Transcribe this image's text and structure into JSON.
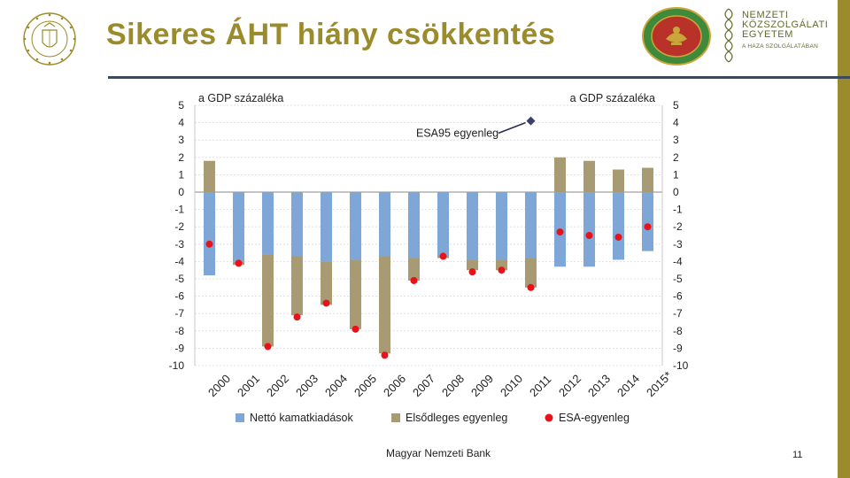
{
  "slide": {
    "title": "Sikeres ÁHT hiány csökkentés",
    "footer": "Magyar Nemzeti Bank",
    "page_number": "11",
    "university": {
      "line1": "NEMZETI",
      "line2": "KÖZSZOLGÁLATI",
      "line3": "EGYETEM",
      "tagline": "A HAZA SZOLGÁLATÁBAN"
    },
    "accent_color": "#9a8b2c",
    "icons": [
      "coat-of-arms-seal-icon",
      "university-seal-icon",
      "university-emblem-icon"
    ]
  },
  "chart_data": {
    "type": "bar",
    "stacked": true,
    "categories": [
      "2000",
      "2001",
      "2002",
      "2003",
      "2004",
      "2005",
      "2006",
      "2007",
      "2008",
      "2009",
      "2010",
      "2011",
      "2012",
      "2013",
      "2014",
      "2015*"
    ],
    "ylabel_left": "a GDP százaléka",
    "ylabel_right": "a GDP százaléka",
    "ylim": [
      -10,
      5
    ],
    "yticks": [
      5,
      4,
      3,
      2,
      1,
      0,
      -1,
      -2,
      -3,
      -4,
      -5,
      -6,
      -7,
      -8,
      -9,
      -10
    ],
    "grid": true,
    "legend_position": "bottom",
    "series": [
      {
        "name": "Nettó kamatkiadások",
        "kind": "bar",
        "color": "#7ea7d8",
        "values": [
          -4.8,
          -4.0,
          -3.6,
          -3.7,
          -4.0,
          -3.9,
          -3.7,
          -3.8,
          -3.7,
          -3.9,
          -3.9,
          -3.8,
          -4.3,
          -4.3,
          -3.9,
          -3.4
        ]
      },
      {
        "name": "Elsődleges egyenleg",
        "kind": "bar",
        "color": "#a89a72",
        "values": [
          1.8,
          -0.2,
          -5.3,
          -3.4,
          -2.5,
          -4.0,
          -5.6,
          -1.3,
          -0.1,
          -0.6,
          -0.6,
          -1.7,
          2.0,
          1.8,
          1.3,
          1.4
        ]
      },
      {
        "name": "ESA-egyenleg",
        "kind": "point",
        "color": "#e8121a",
        "values": [
          -3.0,
          -4.1,
          -8.9,
          -7.2,
          -6.4,
          -7.9,
          -9.4,
          -5.1,
          -3.7,
          -4.6,
          -4.5,
          -5.5,
          -2.3,
          -2.5,
          -2.6,
          -2.0
        ]
      }
    ],
    "annotation": {
      "text": "ESA95 egyenleg",
      "category": "2011",
      "value": 4.1,
      "marker_color": "#3d3f6b"
    }
  }
}
